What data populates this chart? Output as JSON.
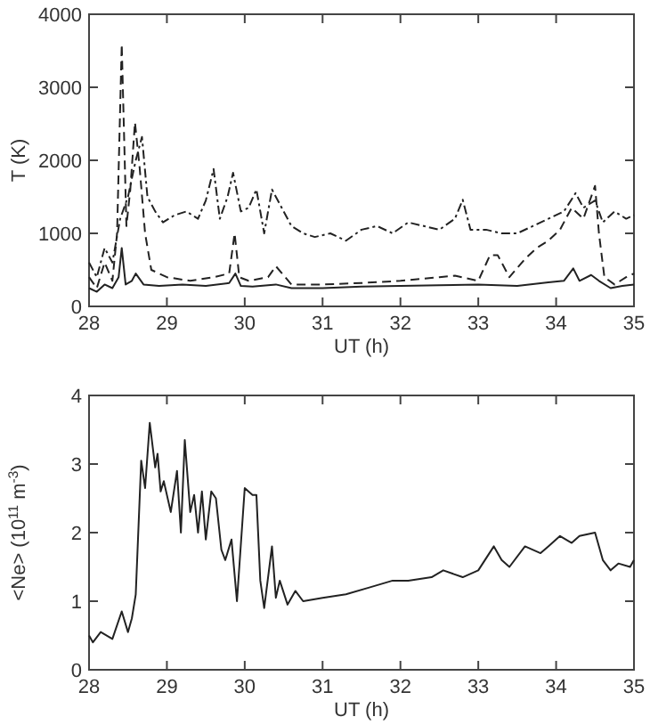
{
  "chart_data": [
    {
      "type": "line",
      "xlabel": "UT (h)",
      "ylabel": "T (K)",
      "xlim": [
        28,
        35
      ],
      "xticks": [
        28,
        29,
        30,
        31,
        32,
        33,
        34,
        35
      ],
      "ylim": [
        0,
        4000
      ],
      "yticks": [
        0,
        1000,
        2000,
        3000,
        4000
      ],
      "grid": false,
      "series": [
        {
          "color": "#222222",
          "line_style": "solid",
          "x": [
            28,
            28.1,
            28.2,
            28.3,
            28.38,
            28.42,
            28.47,
            28.55,
            28.6,
            28.7,
            28.9,
            29.2,
            29.5,
            29.8,
            29.88,
            29.95,
            30.1,
            30.4,
            30.6,
            31,
            31.5,
            32,
            32.5,
            33,
            33.5,
            33.9,
            34.1,
            34.22,
            34.3,
            34.45,
            34.55,
            34.7,
            34.85,
            35
          ],
          "values": [
            250,
            200,
            300,
            250,
            400,
            800,
            300,
            350,
            450,
            300,
            280,
            300,
            280,
            320,
            450,
            280,
            270,
            300,
            250,
            250,
            270,
            280,
            290,
            300,
            280,
            330,
            350,
            520,
            350,
            430,
            350,
            250,
            280,
            300
          ]
        },
        {
          "color": "#222222",
          "line_style": "dashed",
          "x": [
            28,
            28.1,
            28.2,
            28.3,
            28.36,
            28.42,
            28.48,
            28.53,
            28.59,
            28.65,
            28.72,
            28.8,
            29,
            29.3,
            29.6,
            29.8,
            29.87,
            29.93,
            30.05,
            30.3,
            30.4,
            30.6,
            31,
            31.5,
            32,
            32.5,
            32.7,
            33,
            33.15,
            33.25,
            33.4,
            33.6,
            33.75,
            33.9,
            34.05,
            34.2,
            34.35,
            34.5,
            34.55,
            34.62,
            34.75,
            34.9,
            35
          ],
          "values": [
            400,
            250,
            600,
            350,
            1000,
            3590,
            1100,
            1600,
            2520,
            1900,
            1000,
            500,
            400,
            350,
            400,
            450,
            1000,
            400,
            350,
            400,
            550,
            300,
            300,
            320,
            350,
            400,
            420,
            350,
            700,
            700,
            400,
            650,
            800,
            900,
            1050,
            1350,
            1200,
            1650,
            1000,
            400,
            300,
            400,
            450
          ]
        },
        {
          "color": "#222222",
          "line_style": "dashdot",
          "x": [
            28,
            28.1,
            28.2,
            28.3,
            28.4,
            28.5,
            28.6,
            28.68,
            28.75,
            28.85,
            28.95,
            29.1,
            29.25,
            29.4,
            29.5,
            29.6,
            29.68,
            29.78,
            29.85,
            29.95,
            30.05,
            30.15,
            30.25,
            30.35,
            30.45,
            30.6,
            30.75,
            30.9,
            31.1,
            31.3,
            31.5,
            31.7,
            31.9,
            32.1,
            32.3,
            32.5,
            32.7,
            32.8,
            32.9,
            33.1,
            33.3,
            33.5,
            33.7,
            33.9,
            34.1,
            34.25,
            34.35,
            34.5,
            34.6,
            34.75,
            34.9,
            35
          ],
          "values": [
            600,
            400,
            800,
            600,
            1200,
            1500,
            2000,
            2320,
            1500,
            1300,
            1150,
            1250,
            1300,
            1200,
            1450,
            1880,
            1200,
            1500,
            1830,
            1300,
            1350,
            1600,
            1000,
            1600,
            1400,
            1100,
            1000,
            950,
            1000,
            900,
            1050,
            1100,
            1000,
            1150,
            1100,
            1050,
            1200,
            1460,
            1050,
            1050,
            1000,
            1000,
            1100,
            1200,
            1300,
            1550,
            1350,
            1450,
            1150,
            1300,
            1200,
            1250
          ]
        }
      ]
    },
    {
      "type": "line",
      "xlabel": "UT (h)",
      "ylabel": "<Ne> (10$^{11}$ m$^{-3}$)",
      "xlim": [
        28,
        35
      ],
      "xticks": [
        28,
        29,
        30,
        31,
        32,
        33,
        34,
        35
      ],
      "ylim": [
        0,
        4
      ],
      "yticks": [
        0,
        1,
        2,
        3,
        4
      ],
      "grid": false,
      "series": [
        {
          "color": "#222222",
          "line_style": "solid",
          "x": [
            28,
            28.05,
            28.15,
            28.3,
            28.42,
            28.5,
            28.55,
            28.6,
            28.67,
            28.72,
            28.78,
            28.85,
            28.88,
            28.92,
            28.96,
            29.05,
            29.13,
            29.18,
            29.23,
            29.3,
            29.35,
            29.4,
            29.45,
            29.5,
            29.57,
            29.63,
            29.7,
            29.75,
            29.83,
            29.9,
            30,
            30.1,
            30.15,
            30.2,
            30.25,
            30.35,
            30.4,
            30.45,
            30.55,
            30.65,
            30.75,
            31,
            31.3,
            31.6,
            31.9,
            32.1,
            32.4,
            32.55,
            32.8,
            33,
            33.2,
            33.3,
            33.4,
            33.6,
            33.8,
            33.9,
            34.05,
            34.2,
            34.3,
            34.5,
            34.6,
            34.7,
            34.8,
            34.95,
            35
          ],
          "values": [
            0.5,
            0.4,
            0.55,
            0.45,
            0.85,
            0.55,
            0.75,
            1.1,
            3.05,
            2.65,
            3.6,
            2.95,
            3.15,
            2.6,
            2.75,
            2.3,
            2.9,
            2.0,
            3.35,
            2.3,
            2.55,
            2.0,
            2.6,
            1.9,
            2.6,
            2.5,
            1.75,
            1.6,
            1.9,
            1.0,
            2.65,
            2.55,
            2.55,
            1.3,
            0.9,
            1.8,
            1.05,
            1.3,
            0.95,
            1.15,
            1.0,
            1.05,
            1.1,
            1.2,
            1.3,
            1.3,
            1.35,
            1.45,
            1.35,
            1.45,
            1.8,
            1.6,
            1.5,
            1.8,
            1.7,
            1.8,
            1.95,
            1.85,
            1.95,
            2.0,
            1.6,
            1.45,
            1.55,
            1.5,
            1.6
          ]
        }
      ]
    }
  ]
}
